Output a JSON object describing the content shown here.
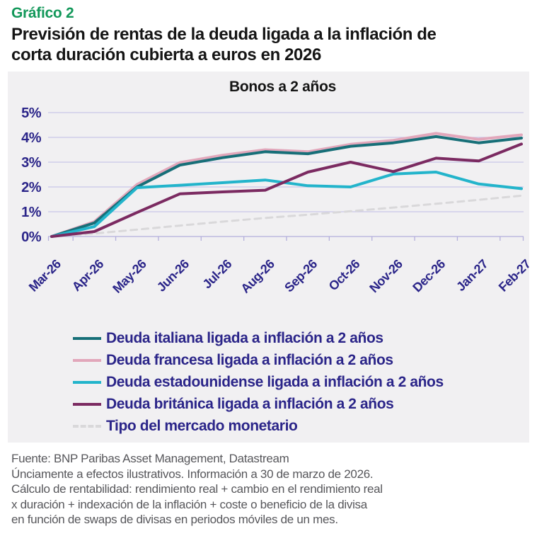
{
  "header": {
    "kicker": "Gráfico 2",
    "title_line1": "Previsión de rentas de la deuda ligada a la inflación de",
    "title_line2": "corta duración cubierta a euros en 2026"
  },
  "chart_data": {
    "type": "line",
    "title": "Bonos a 2 años",
    "categories": [
      "Mar-26",
      "Apr-26",
      "May-26",
      "Jun-26",
      "Jul-26",
      "Aug-26",
      "Sep-26",
      "Oct-26",
      "Nov-26",
      "Dec-26",
      "Jan-27",
      "Feb-27"
    ],
    "y_tick_labels": [
      "5%",
      "4%",
      "3%",
      "2%",
      "1%",
      "0%"
    ],
    "ylim": [
      0,
      5
    ],
    "y_unit": "%",
    "grid": true,
    "legend_position": "bottom-left",
    "series": [
      {
        "name": "Deuda italiana ligada a inflación a 2 años",
        "color": "#176f78",
        "dash": false,
        "values": [
          0,
          0.55,
          2.0,
          2.88,
          3.18,
          3.42,
          3.34,
          3.64,
          3.78,
          4.03,
          3.78,
          3.97
        ]
      },
      {
        "name": "Deuda francesa ligada a inflación a 2 años",
        "color": "#e2a7bb",
        "dash": false,
        "values": [
          0,
          0.6,
          2.1,
          2.98,
          3.28,
          3.5,
          3.42,
          3.72,
          3.88,
          4.16,
          3.92,
          4.1
        ]
      },
      {
        "name": "Deuda estadounidense ligada a inflación a 2 años",
        "color": "#23b4cb",
        "dash": false,
        "values": [
          0,
          0.4,
          1.97,
          2.07,
          2.17,
          2.28,
          2.05,
          2.0,
          2.52,
          2.6,
          2.12,
          1.93
        ]
      },
      {
        "name": "Deuda británica ligada a inflación a 2 años",
        "color": "#7b2a61",
        "dash": false,
        "values": [
          0,
          0.2,
          0.97,
          1.72,
          1.8,
          1.87,
          2.6,
          3.0,
          2.62,
          3.16,
          3.05,
          3.73
        ]
      },
      {
        "name": "Tipo del mercado monetario",
        "color": "#d9d8da",
        "dash": true,
        "values": [
          0,
          0.12,
          0.28,
          0.44,
          0.6,
          0.75,
          0.88,
          1.02,
          1.17,
          1.32,
          1.48,
          1.65
        ]
      }
    ],
    "draw_order": [
      4,
      1,
      0,
      2,
      3
    ]
  },
  "palette": {
    "accent_green": "#13985a",
    "axis_text": "#2b2589",
    "grid_line": "#c9c5e8",
    "axis_line": "#b3aedb",
    "panel_bg": "#f1f0f2",
    "title_text": "#151515",
    "footer_text": "#57575b"
  },
  "footer": {
    "lines": [
      "Fuente: BNP Paribas Asset Management, Datastream",
      "Únciamente a efectos ilustrativos. Información a 30 de marzo de 2026.",
      "Cálculo de rentabilidad: rendimiento real + cambio en el rendimiento real",
      "x duración + indexación de la inflación + coste o beneficio de la divisa",
      "en función de swaps de divisas en periodos móviles de un mes."
    ]
  }
}
